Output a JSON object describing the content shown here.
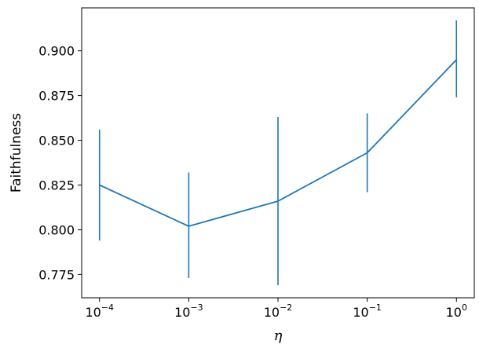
{
  "chart_data": {
    "type": "line",
    "title": "",
    "xlabel": "η",
    "ylabel": "Faithfulness",
    "x_scale": "log",
    "x": [
      0.0001,
      0.001,
      0.01,
      0.1,
      1
    ],
    "xtick_labels": [
      {
        "base": "10",
        "exp": "−4"
      },
      {
        "base": "10",
        "exp": "−3"
      },
      {
        "base": "10",
        "exp": "−2"
      },
      {
        "base": "10",
        "exp": "−1"
      },
      {
        "base": "10",
        "exp": "0"
      }
    ],
    "yticks": [
      "0.775",
      "0.800",
      "0.825",
      "0.850",
      "0.875",
      "0.900"
    ],
    "ylim": [
      0.762,
      0.924
    ],
    "grid": false,
    "series": [
      {
        "color": "#1f77b4",
        "values": [
          0.825,
          0.802,
          0.816,
          0.843,
          0.895
        ],
        "error_low": [
          0.794,
          0.773,
          0.769,
          0.821,
          0.874
        ],
        "error_high": [
          0.856,
          0.832,
          0.863,
          0.865,
          0.917
        ]
      }
    ]
  }
}
